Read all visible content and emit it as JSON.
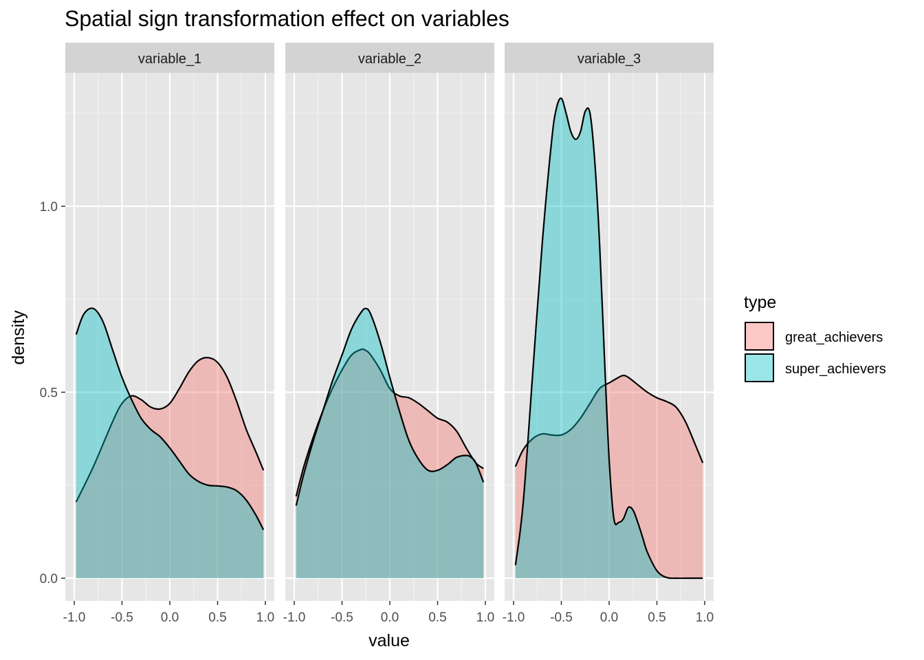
{
  "chart_data": {
    "type": "area",
    "title": "Spatial sign transformation effect on variables",
    "xlabel": "value",
    "ylabel": "density",
    "xlim": [
      -1.0,
      1.0
    ],
    "ylim": [
      0,
      1.3
    ],
    "xticks": [
      -1.0,
      -0.5,
      0.0,
      0.5,
      1.0
    ],
    "xtick_labels": [
      "-1.0",
      "-0.5",
      "0.0",
      "0.5",
      "1.0"
    ],
    "yticks": [
      0.0,
      0.5,
      1.0
    ],
    "ytick_labels": [
      "0.0",
      "0.5",
      "1.0"
    ],
    "grid": true,
    "legend": {
      "title": "type",
      "position": "right",
      "entries": [
        {
          "label": "great_achievers",
          "color": "#F8766D"
        },
        {
          "label": "super_achievers",
          "color": "#00BFC4"
        }
      ]
    },
    "panels": [
      {
        "label": "variable_1",
        "series": [
          {
            "name": "great_achievers",
            "color": "#F8766D",
            "x": [
              -0.98,
              -0.8,
              -0.6,
              -0.5,
              -0.4,
              -0.3,
              -0.2,
              -0.1,
              0.0,
              0.1,
              0.2,
              0.3,
              0.4,
              0.5,
              0.6,
              0.7,
              0.8,
              0.9,
              0.98
            ],
            "y": [
              0.205,
              0.3,
              0.42,
              0.47,
              0.49,
              0.48,
              0.46,
              0.455,
              0.47,
              0.51,
              0.555,
              0.585,
              0.593,
              0.58,
              0.54,
              0.475,
              0.4,
              0.34,
              0.29
            ]
          },
          {
            "name": "super_achievers",
            "color": "#00BFC4",
            "x": [
              -0.98,
              -0.9,
              -0.8,
              -0.7,
              -0.6,
              -0.5,
              -0.4,
              -0.3,
              -0.2,
              -0.1,
              0.0,
              0.1,
              0.2,
              0.3,
              0.4,
              0.5,
              0.6,
              0.7,
              0.8,
              0.9,
              0.98
            ],
            "y": [
              0.655,
              0.71,
              0.725,
              0.69,
              0.615,
              0.54,
              0.48,
              0.43,
              0.4,
              0.38,
              0.35,
              0.315,
              0.28,
              0.26,
              0.25,
              0.248,
              0.245,
              0.235,
              0.21,
              0.17,
              0.13
            ]
          }
        ]
      },
      {
        "label": "variable_2",
        "series": [
          {
            "name": "great_achievers",
            "color": "#F8766D",
            "x": [
              -0.98,
              -0.9,
              -0.8,
              -0.7,
              -0.6,
              -0.5,
              -0.4,
              -0.3,
              -0.25,
              -0.2,
              -0.1,
              0.0,
              0.1,
              0.2,
              0.3,
              0.4,
              0.5,
              0.6,
              0.7,
              0.8,
              0.9,
              0.98
            ],
            "y": [
              0.22,
              0.3,
              0.38,
              0.45,
              0.51,
              0.56,
              0.6,
              0.615,
              0.612,
              0.6,
              0.56,
              0.51,
              0.49,
              0.485,
              0.47,
              0.45,
              0.43,
              0.42,
              0.395,
              0.35,
              0.31,
              0.295
            ]
          },
          {
            "name": "super_achievers",
            "color": "#00BFC4",
            "x": [
              -0.98,
              -0.9,
              -0.8,
              -0.7,
              -0.6,
              -0.5,
              -0.4,
              -0.3,
              -0.25,
              -0.2,
              -0.1,
              0.0,
              0.1,
              0.2,
              0.3,
              0.4,
              0.5,
              0.6,
              0.7,
              0.8,
              0.85,
              0.9,
              0.98
            ],
            "y": [
              0.195,
              0.28,
              0.37,
              0.45,
              0.53,
              0.6,
              0.67,
              0.715,
              0.725,
              0.71,
              0.635,
              0.54,
              0.45,
              0.37,
              0.32,
              0.29,
              0.29,
              0.305,
              0.325,
              0.33,
              0.325,
              0.31,
              0.258
            ]
          }
        ]
      },
      {
        "label": "variable_3",
        "series": [
          {
            "name": "great_achievers",
            "color": "#F8766D",
            "x": [
              -0.98,
              -0.9,
              -0.8,
              -0.7,
              -0.6,
              -0.5,
              -0.4,
              -0.3,
              -0.2,
              -0.1,
              0.0,
              0.1,
              0.15,
              0.2,
              0.3,
              0.4,
              0.5,
              0.6,
              0.7,
              0.8,
              0.9,
              0.98
            ],
            "y": [
              0.3,
              0.345,
              0.375,
              0.388,
              0.385,
              0.385,
              0.4,
              0.43,
              0.47,
              0.51,
              0.525,
              0.54,
              0.545,
              0.54,
              0.52,
              0.5,
              0.485,
              0.475,
              0.46,
              0.42,
              0.36,
              0.31
            ]
          },
          {
            "name": "super_achievers",
            "color": "#00BFC4",
            "x": [
              -0.98,
              -0.9,
              -0.8,
              -0.7,
              -0.6,
              -0.55,
              -0.5,
              -0.45,
              -0.4,
              -0.35,
              -0.3,
              -0.25,
              -0.2,
              -0.15,
              -0.1,
              -0.05,
              0.0,
              0.05,
              0.1,
              0.15,
              0.2,
              0.25,
              0.3,
              0.35,
              0.4,
              0.5,
              0.6,
              0.7,
              0.8,
              0.9,
              0.98
            ],
            "y": [
              0.035,
              0.2,
              0.55,
              0.9,
              1.18,
              1.265,
              1.29,
              1.25,
              1.2,
              1.18,
              1.2,
              1.255,
              1.25,
              1.12,
              0.9,
              0.6,
              0.32,
              0.16,
              0.15,
              0.16,
              0.19,
              0.183,
              0.15,
              0.11,
              0.07,
              0.02,
              0.002,
              0.0,
              0.0,
              0.0,
              0.0
            ]
          }
        ]
      }
    ]
  }
}
